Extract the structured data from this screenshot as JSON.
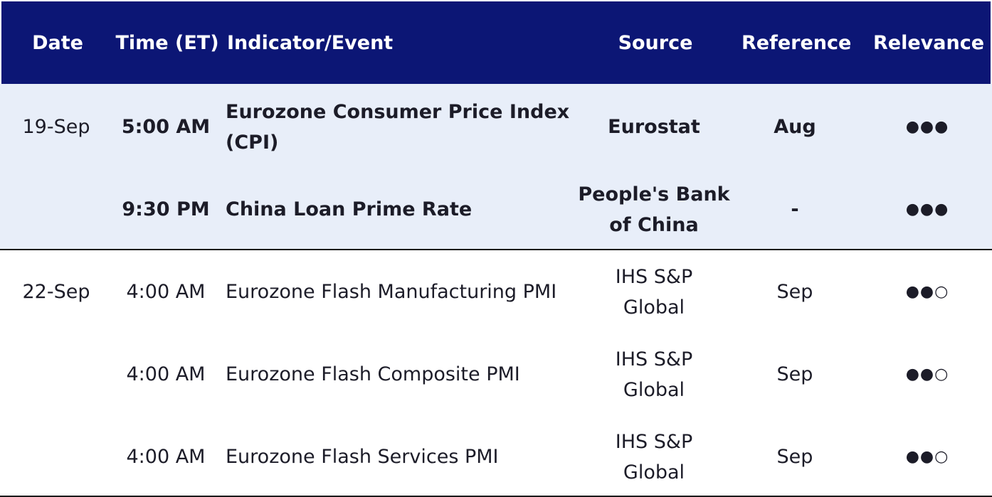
{
  "header": {
    "date": "Date",
    "time": "Time (ET)",
    "indicator": "Indicator/Event",
    "source": "Source",
    "reference": "Reference",
    "relevance": "Relevance"
  },
  "groups": [
    {
      "date": "19-Sep",
      "rows": [
        {
          "time": "5:00 AM",
          "indicator": [
            "Eurozone Consumer Price Index",
            "(CPI)"
          ],
          "source": [
            "Eurostat"
          ],
          "reference": "Aug",
          "relevance": "●●●",
          "relevance_level": 3
        },
        {
          "time": "9:30 PM",
          "indicator": [
            "China Loan Prime Rate"
          ],
          "source": [
            "People's Bank",
            "of China"
          ],
          "reference": "-",
          "relevance": "●●●",
          "relevance_level": 3
        }
      ]
    },
    {
      "date": "22-Sep",
      "rows": [
        {
          "time": "4:00 AM",
          "indicator": [
            "Eurozone Flash Manufacturing PMI"
          ],
          "source": [
            "IHS S&P",
            "Global"
          ],
          "reference": "Sep",
          "relevance": "●●○",
          "relevance_level": 2
        },
        {
          "time": "4:00 AM",
          "indicator": [
            "Eurozone Flash Composite PMI"
          ],
          "source": [
            "IHS S&P",
            "Global"
          ],
          "reference": "Sep",
          "relevance": "●●○",
          "relevance_level": 2
        },
        {
          "time": "4:00 AM",
          "indicator": [
            "Eurozone Flash Services PMI"
          ],
          "source": [
            "IHS S&P",
            "Global"
          ],
          "reference": "Sep",
          "relevance": "●●○",
          "relevance_level": 2
        }
      ]
    }
  ],
  "colors": {
    "header_bg": "#0c1675",
    "header_text": "#ffffff",
    "highlight_bg": "#e8eef9",
    "text": "#1c1c28",
    "rule": "#1a1a1a"
  }
}
